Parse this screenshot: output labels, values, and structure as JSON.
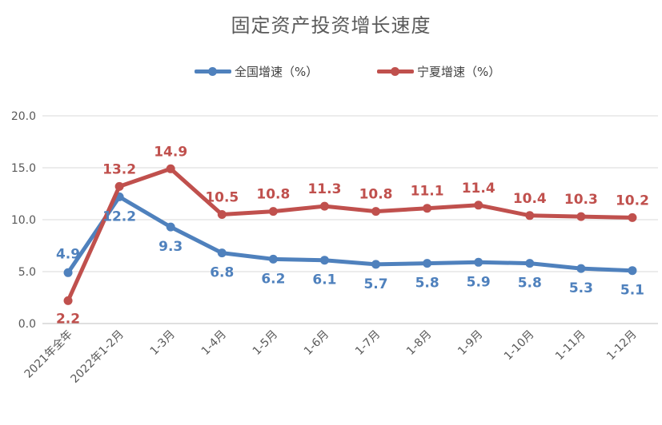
{
  "chart_data": {
    "type": "line",
    "title": "固定资产投资增长速度",
    "categories": [
      "2021年全年",
      "2022年1-2月",
      "1-3月",
      "1-4月",
      "1-5月",
      "1-6月",
      "1-7月",
      "1-8月",
      "1-9月",
      "1-10月",
      "1-11月",
      "1-12月"
    ],
    "series": [
      {
        "name": "全国增速（%）",
        "color": "#4f81bd",
        "values": [
          4.9,
          12.2,
          9.3,
          6.8,
          6.2,
          6.1,
          5.7,
          5.8,
          5.9,
          5.8,
          5.3,
          5.1
        ],
        "label_position": "below"
      },
      {
        "name": "宁夏增速（%）",
        "color": "#c0504d",
        "values": [
          2.2,
          13.2,
          14.9,
          10.5,
          10.8,
          11.3,
          10.8,
          11.1,
          11.4,
          10.4,
          10.3,
          10.2
        ],
        "label_position": "above"
      }
    ],
    "y_ticks": [
      "0.0",
      "5.0",
      "10.0",
      "15.0",
      "20.0"
    ],
    "ylim": [
      0,
      20
    ],
    "grid": true,
    "legend": "top-center"
  }
}
